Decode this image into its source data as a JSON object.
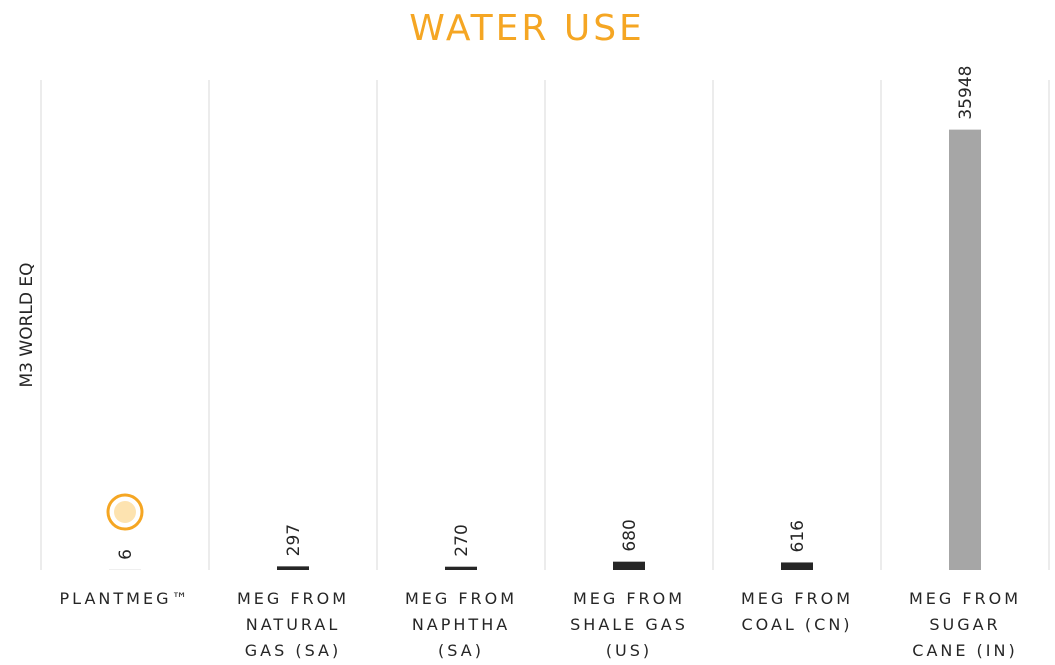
{
  "chart_data": {
    "type": "bar",
    "title": "WATER USE",
    "y_label": "M3 WORLD EQ",
    "categories": [
      "PLANTMEG™",
      "MEG FROM\nNATURAL\nGAS (SA)",
      "MEG FROM\nNAPHTHA\n(SA)",
      "MEG FROM\nSHALE GAS\n(US)",
      "MEG FROM\nCOAL (CN)",
      "MEG FROM\nSUGAR\nCANE (IN)"
    ],
    "values": [
      6,
      297,
      270,
      680,
      616,
      35948
    ],
    "colors": [
      "#262626",
      "#262626",
      "#262626",
      "#262626",
      "#262626",
      "#a6a6a6"
    ],
    "ylim": [
      0,
      40000
    ]
  }
}
